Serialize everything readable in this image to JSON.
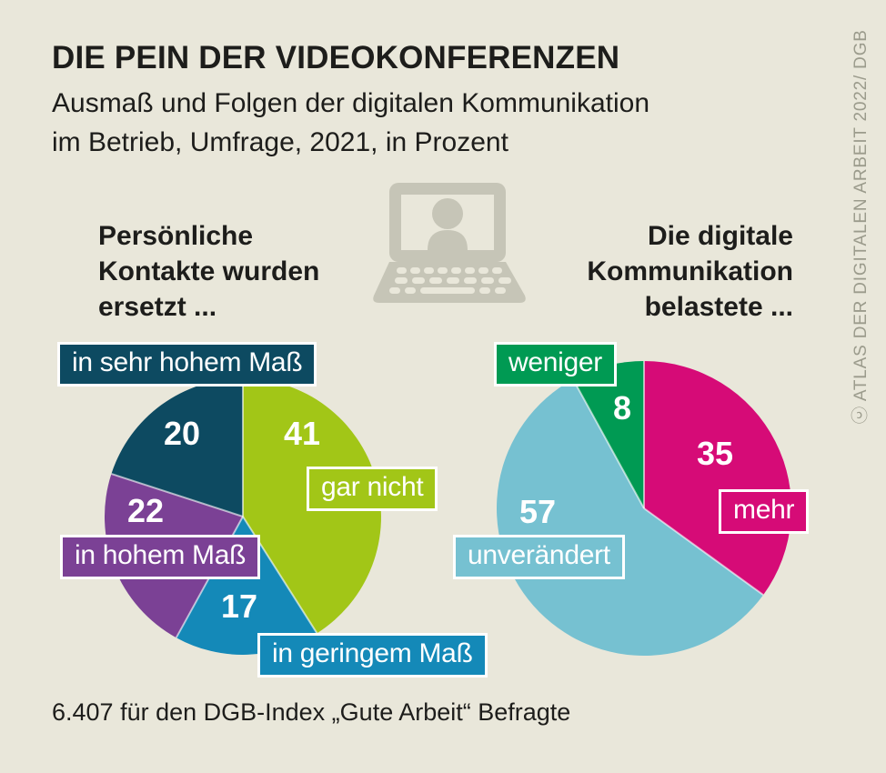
{
  "header": {
    "title": "DIE PEIN DER VIDEOKONFERENZEN",
    "subtitle_lines": [
      "Ausmaß und Folgen der digitalen Kommunikation",
      "im Betrieb, Umfrage, 2021, in Prozent"
    ]
  },
  "credit": "ⓒ ATLAS DER DIGITALEN ARBEIT 2022/ DGB",
  "footer": {
    "text": "6.407 für den DGB-Index „Gute Arbeit“ Befragte"
  },
  "icons": {
    "hero": "laptop-video-call-icon"
  },
  "colors": {
    "background": "#e9e7da",
    "text": "#1d1d1b",
    "credit": "#9b9b8c",
    "laptop": "#c6c5b7",
    "label-text": "#ffffff"
  },
  "chart_data": [
    {
      "type": "pie",
      "title": "Persönliche Kontakte wurden ersetzt ...",
      "title_lines": [
        "Persönliche",
        "Kontakte wurden",
        "ersetzt ..."
      ],
      "unit": "percent",
      "start_angle": "12-oclock",
      "direction": "clockwise",
      "slices": [
        {
          "label": "gar nicht",
          "value": 41,
          "color": "#a2c617"
        },
        {
          "label": "in geringem Maß",
          "value": 17,
          "color": "#1489b8"
        },
        {
          "label": "in hohem Maß",
          "value": 22,
          "color": "#7b4195"
        },
        {
          "label": "in sehr hohem Maß",
          "value": 20,
          "color": "#0d4a61"
        }
      ]
    },
    {
      "type": "pie",
      "title": "Die digitale Kommunikation belastete ...",
      "title_lines": [
        "Die digitale",
        "Kommunikation",
        "belastete ..."
      ],
      "unit": "percent",
      "start_angle": "12-oclock",
      "direction": "clockwise",
      "slices": [
        {
          "label": "mehr",
          "value": 35,
          "color": "#d60b77"
        },
        {
          "label": "unverändert",
          "value": 57,
          "color": "#76c1d1"
        },
        {
          "label": "weniger",
          "value": 8,
          "color": "#009a53"
        }
      ]
    }
  ]
}
